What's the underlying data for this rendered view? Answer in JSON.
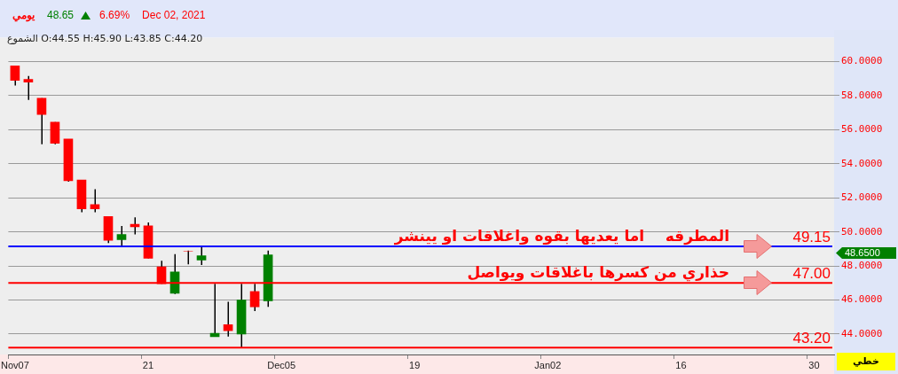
{
  "chart_data": {
    "type": "candlestick",
    "title": "يومي",
    "subtitle": "الشموع O:44.55 H:45.90 L:43.85 C:44.20",
    "categories": [
      "Nov07",
      null,
      null,
      null,
      null,
      null,
      null,
      null,
      null,
      null,
      "21",
      null,
      null,
      null,
      null,
      null,
      null,
      null,
      null,
      null,
      "Dec05",
      null,
      null,
      null,
      null,
      null,
      null,
      null,
      null,
      null,
      "19",
      null,
      null,
      null,
      null,
      null,
      null,
      null,
      null,
      null,
      "Jan02",
      null,
      null,
      null,
      null,
      null,
      null,
      null,
      null,
      null,
      "16",
      null,
      null,
      null,
      null,
      null,
      null,
      null,
      null,
      null,
      "30",
      null
    ],
    "ohlc": [
      [
        59.75,
        59.75,
        58.6,
        58.9
      ],
      [
        58.95,
        59.15,
        57.75,
        58.8
      ],
      [
        57.85,
        57.85,
        55.15,
        56.9
      ],
      [
        56.45,
        56.45,
        55.15,
        55.2
      ],
      [
        55.45,
        55.45,
        52.95,
        53.0
      ],
      [
        53.05,
        53.05,
        51.15,
        51.35
      ],
      [
        51.6,
        52.5,
        51.15,
        51.35
      ],
      [
        50.9,
        50.9,
        49.35,
        49.5
      ],
      [
        49.55,
        50.35,
        49.2,
        49.85
      ],
      [
        50.45,
        50.85,
        49.85,
        50.3
      ],
      [
        50.35,
        50.55,
        48.45,
        48.45
      ],
      [
        47.95,
        48.3,
        46.95,
        46.95
      ],
      [
        46.4,
        48.7,
        46.35,
        47.65
      ],
      [
        48.85,
        48.9,
        48.1,
        48.85
      ],
      [
        48.35,
        49.15,
        48.05,
        48.6
      ],
      [
        43.85,
        46.95,
        43.85,
        44.05
      ],
      [
        44.55,
        45.9,
        43.85,
        44.2
      ],
      [
        44.0,
        46.95,
        43.2,
        46.0
      ],
      [
        46.5,
        46.95,
        45.35,
        45.6
      ],
      [
        45.95,
        48.9,
        45.6,
        48.65
      ],
      null,
      null,
      null,
      null,
      null,
      null,
      null,
      null,
      null,
      null,
      null,
      null,
      null,
      null,
      null,
      null,
      null,
      null,
      null,
      null,
      null,
      null,
      null,
      null,
      null,
      null,
      null,
      null,
      null,
      null,
      null,
      null,
      null,
      null,
      null,
      null,
      null,
      null,
      null,
      null,
      null,
      null
    ],
    "colors": [
      "#ff0000",
      "#ff0000",
      "#ff0000",
      "#ff0000",
      "#ff0000",
      "#ff0000",
      "#ff0000",
      "#ff0000",
      "#008000",
      "#ff0000",
      "#ff0000",
      "#ff0000",
      "#008000",
      "#ff0000",
      "#008000",
      "#008000",
      "#ff0000",
      "#008000",
      "#ff0000",
      "#008000",
      null,
      null,
      null,
      null,
      null,
      null,
      null,
      null,
      null,
      null,
      null,
      null,
      null,
      null,
      null,
      null,
      null,
      null,
      null,
      null,
      null,
      null,
      null,
      null,
      null,
      null,
      null,
      null,
      null,
      null,
      null,
      null,
      null,
      null,
      null,
      null,
      null,
      null,
      null,
      null,
      null,
      null
    ],
    "ylim": [
      42.8,
      61.4
    ],
    "yticks": [
      {
        "value": 44,
        "label": "44.0000"
      },
      {
        "value": 46,
        "label": "46.0000"
      },
      {
        "value": 48,
        "label": "48.0000"
      },
      {
        "value": 50,
        "label": "50.0000"
      },
      {
        "value": 52,
        "label": "52.0000"
      },
      {
        "value": 54,
        "label": "54.0000"
      },
      {
        "value": 56,
        "label": "56.0000"
      },
      {
        "value": 58,
        "label": "58.0000"
      },
      {
        "value": 60,
        "label": "60.0000"
      }
    ],
    "grid": "y",
    "ref_lines": [
      {
        "axis": "y",
        "value": 49.15,
        "label": "49.15",
        "color": "#0000ff"
      },
      {
        "axis": "y",
        "value": 47.0,
        "label": "47.00",
        "color": "#ff0000"
      },
      {
        "axis": "y",
        "value": 43.2,
        "label": "43.20",
        "color": "#ff0000"
      }
    ],
    "annotations": [
      "48.65",
      "6.69%",
      "Dec 02, 2021",
      "المطرقه    اما يعديها بقوه واغلاقات او يينشر",
      "حذاري من كسرها باغلاقات ويواصل",
      "48.6500",
      "خطي"
    ]
  }
}
